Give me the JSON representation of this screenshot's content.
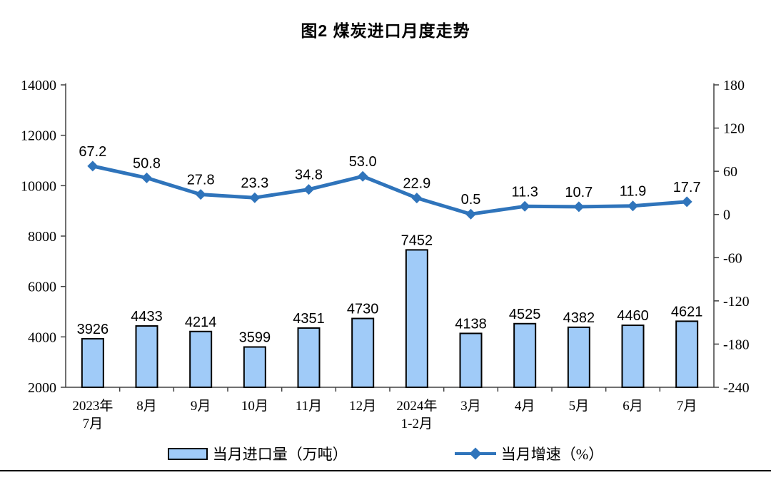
{
  "title": "图2 煤炭进口月度走势",
  "legend": {
    "bar_label": "当月进口量（万吨）",
    "line_label": "当月增速（%）"
  },
  "colors": {
    "bar_fill": "#A0CBF8",
    "bar_border": "#000000",
    "line": "#2F74BB",
    "axis": "#404040",
    "text": "#000000"
  },
  "chart_data": {
    "type": "bar",
    "subtype": "combo-bar-line-dual-axis",
    "title": "图2 煤炭进口月度走势",
    "grid": false,
    "legend_position": "bottom",
    "categories": [
      [
        "2023年",
        "7月"
      ],
      [
        "8月"
      ],
      [
        "9月"
      ],
      [
        "10月"
      ],
      [
        "11月"
      ],
      [
        "12月"
      ],
      [
        "2024年",
        "1-2月"
      ],
      [
        "3月"
      ],
      [
        "4月"
      ],
      [
        "5月"
      ],
      [
        "6月"
      ],
      [
        "7月"
      ]
    ],
    "series": [
      {
        "name": "当月进口量（万吨）",
        "type": "bar",
        "axis": "left",
        "values": [
          3926,
          4433,
          4214,
          3599,
          4351,
          4730,
          7452,
          4138,
          4525,
          4382,
          4460,
          4621
        ],
        "value_labels": [
          "3926",
          "4433",
          "4214",
          "3599",
          "4351",
          "4730",
          "7452",
          "4138",
          "4525",
          "4382",
          "4460",
          "4621"
        ]
      },
      {
        "name": "当月增速（%）",
        "type": "line",
        "axis": "right",
        "values": [
          67.2,
          50.8,
          27.8,
          23.3,
          34.8,
          53.0,
          22.9,
          0.5,
          11.3,
          10.7,
          11.9,
          17.7
        ],
        "value_labels": [
          "67.2",
          "50.8",
          "27.8",
          "23.3",
          "34.8",
          "53.0",
          "22.9",
          "0.5",
          "11.3",
          "10.7",
          "11.9",
          "17.7"
        ]
      }
    ],
    "left_axis": {
      "min": 2000,
      "max": 14000,
      "step": 2000,
      "ticks": [
        "2000",
        "4000",
        "6000",
        "8000",
        "10000",
        "12000",
        "14000"
      ]
    },
    "right_axis": {
      "min": -240,
      "max": 180,
      "step": 60,
      "ticks": [
        "-240",
        "-180",
        "-120",
        "-60",
        "0",
        "60",
        "120",
        "180"
      ]
    }
  }
}
